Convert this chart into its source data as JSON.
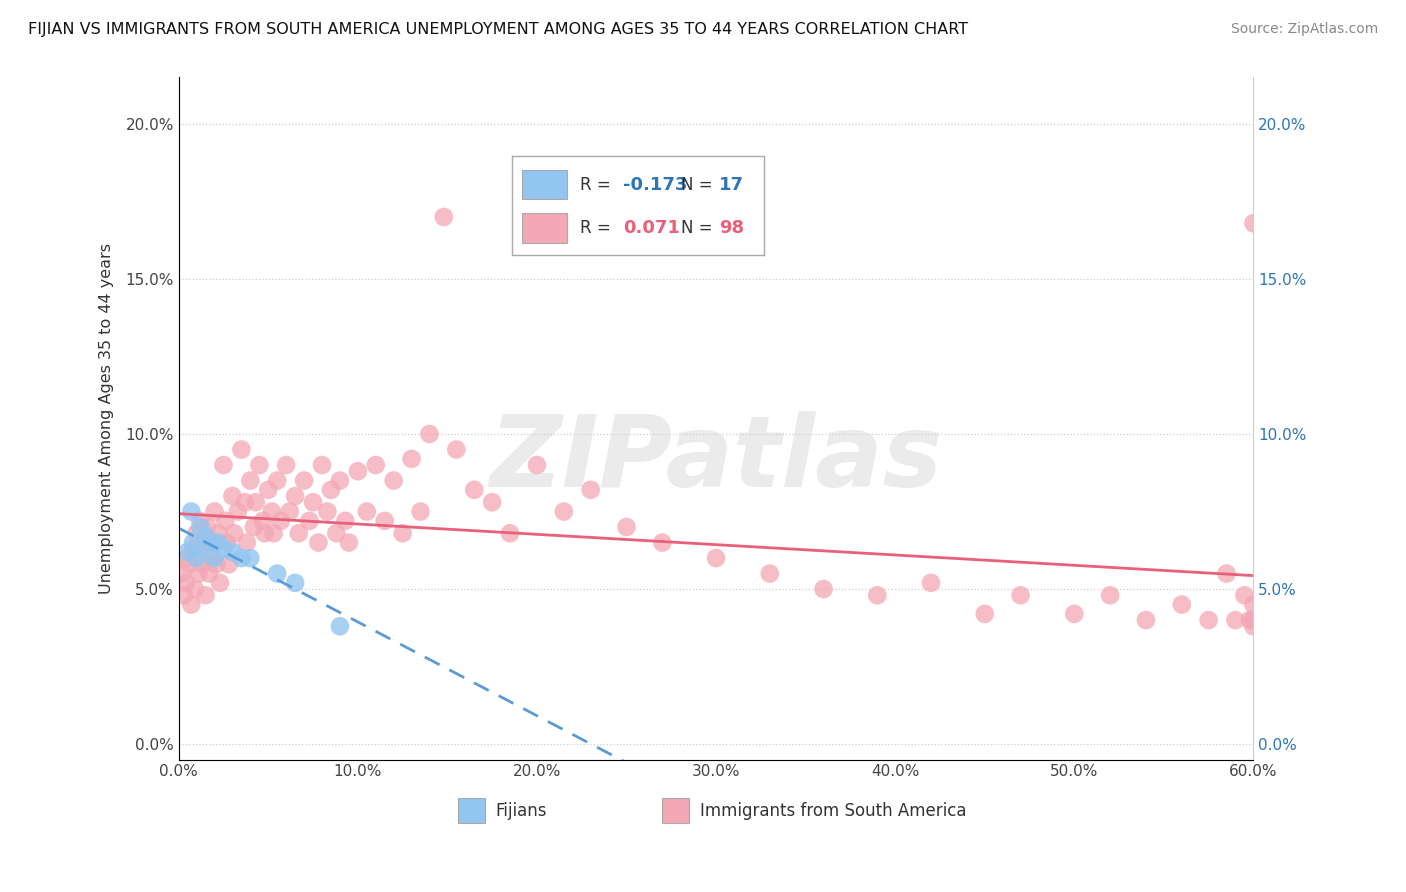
{
  "title": "FIJIAN VS IMMIGRANTS FROM SOUTH AMERICA UNEMPLOYMENT AMONG AGES 35 TO 44 YEARS CORRELATION CHART",
  "source": "Source: ZipAtlas.com",
  "ylabel": "Unemployment Among Ages 35 to 44 years",
  "xlim": [
    0.0,
    0.6
  ],
  "ylim": [
    -0.005,
    0.215
  ],
  "xticks": [
    0.0,
    0.1,
    0.2,
    0.3,
    0.4,
    0.5,
    0.6
  ],
  "xticklabels": [
    "0.0%",
    "10.0%",
    "20.0%",
    "30.0%",
    "40.0%",
    "50.0%",
    "60.0%"
  ],
  "yticks": [
    0.0,
    0.05,
    0.1,
    0.15,
    0.2
  ],
  "yticklabels": [
    "0.0%",
    "5.0%",
    "10.0%",
    "15.0%",
    "20.0%"
  ],
  "fijian_color": "#92C5F0",
  "sa_color": "#F4A7B5",
  "fijian_line_color": "#5B9BD5",
  "sa_line_color": "#E8607A",
  "fijian_R": -0.173,
  "fijian_N": 17,
  "sa_R": 0.071,
  "sa_N": 98,
  "watermark": "ZIPatlas",
  "fijian_x": [
    0.005,
    0.007,
    0.008,
    0.01,
    0.012,
    0.013,
    0.015,
    0.018,
    0.02,
    0.022,
    0.025,
    0.03,
    0.035,
    0.04,
    0.055,
    0.065,
    0.09
  ],
  "fijian_y": [
    0.062,
    0.075,
    0.065,
    0.06,
    0.07,
    0.063,
    0.067,
    0.065,
    0.06,
    0.065,
    0.063,
    0.062,
    0.06,
    0.06,
    0.055,
    0.052,
    0.038
  ],
  "sa_x": [
    0.002,
    0.003,
    0.004,
    0.005,
    0.006,
    0.007,
    0.008,
    0.009,
    0.01,
    0.011,
    0.012,
    0.013,
    0.014,
    0.015,
    0.016,
    0.017,
    0.018,
    0.019,
    0.02,
    0.021,
    0.022,
    0.023,
    0.025,
    0.026,
    0.027,
    0.028,
    0.03,
    0.031,
    0.033,
    0.035,
    0.037,
    0.038,
    0.04,
    0.042,
    0.043,
    0.045,
    0.047,
    0.048,
    0.05,
    0.052,
    0.053,
    0.055,
    0.057,
    0.06,
    0.062,
    0.065,
    0.067,
    0.07,
    0.073,
    0.075,
    0.078,
    0.08,
    0.083,
    0.085,
    0.088,
    0.09,
    0.093,
    0.095,
    0.1,
    0.105,
    0.11,
    0.115,
    0.12,
    0.125,
    0.13,
    0.135,
    0.14,
    0.148,
    0.155,
    0.165,
    0.175,
    0.185,
    0.2,
    0.215,
    0.23,
    0.25,
    0.27,
    0.3,
    0.33,
    0.36,
    0.39,
    0.42,
    0.45,
    0.47,
    0.5,
    0.52,
    0.54,
    0.56,
    0.575,
    0.585,
    0.59,
    0.595,
    0.598,
    0.6,
    0.6,
    0.6,
    0.6,
    0.6
  ],
  "sa_y": [
    0.055,
    0.048,
    0.052,
    0.06,
    0.058,
    0.045,
    0.063,
    0.05,
    0.068,
    0.055,
    0.072,
    0.058,
    0.065,
    0.048,
    0.07,
    0.055,
    0.06,
    0.065,
    0.075,
    0.058,
    0.068,
    0.052,
    0.09,
    0.072,
    0.065,
    0.058,
    0.08,
    0.068,
    0.075,
    0.095,
    0.078,
    0.065,
    0.085,
    0.07,
    0.078,
    0.09,
    0.072,
    0.068,
    0.082,
    0.075,
    0.068,
    0.085,
    0.072,
    0.09,
    0.075,
    0.08,
    0.068,
    0.085,
    0.072,
    0.078,
    0.065,
    0.09,
    0.075,
    0.082,
    0.068,
    0.085,
    0.072,
    0.065,
    0.088,
    0.075,
    0.09,
    0.072,
    0.085,
    0.068,
    0.092,
    0.075,
    0.1,
    0.17,
    0.095,
    0.082,
    0.078,
    0.068,
    0.09,
    0.075,
    0.082,
    0.07,
    0.065,
    0.06,
    0.055,
    0.05,
    0.048,
    0.052,
    0.042,
    0.048,
    0.042,
    0.048,
    0.04,
    0.045,
    0.04,
    0.055,
    0.04,
    0.048,
    0.04,
    0.168,
    0.045,
    0.04,
    0.038,
    0.04
  ]
}
